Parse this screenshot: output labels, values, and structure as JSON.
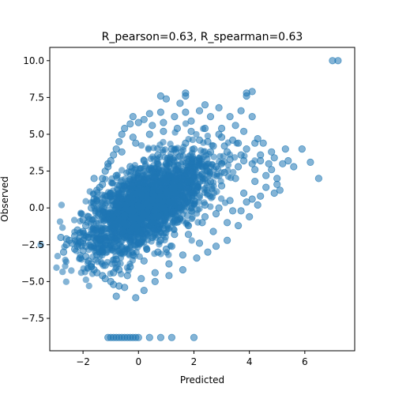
{
  "chart_data": {
    "type": "scatter",
    "title": "R_pearson=0.63, R_spearman=0.63",
    "xlabel": "Predicted",
    "ylabel": "Observed",
    "xlim": [
      -3.2,
      7.8
    ],
    "ylim": [
      -9.7,
      10.9
    ],
    "xticks": [
      {
        "value": -2,
        "label": "−2"
      },
      {
        "value": 0,
        "label": "0"
      },
      {
        "value": 2,
        "label": "2"
      },
      {
        "value": 4,
        "label": "4"
      },
      {
        "value": 6,
        "label": "6"
      }
    ],
    "yticks": [
      {
        "value": -7.5,
        "label": "−7.5"
      },
      {
        "value": -5.0,
        "label": "−5.0"
      },
      {
        "value": -2.5,
        "label": "−2.5"
      },
      {
        "value": 0.0,
        "label": "0.0"
      },
      {
        "value": 2.5,
        "label": "2.5"
      },
      {
        "value": 5.0,
        "label": "5.0"
      },
      {
        "value": 7.5,
        "label": "7.5"
      },
      {
        "value": 10.0,
        "label": "10.0"
      }
    ],
    "grid": false,
    "marker_color": "#1f77b4",
    "marker_alpha": 0.55,
    "series": [
      {
        "points": [
          [
            -2.8,
            -2.0
          ],
          [
            -2.7,
            -3.0
          ],
          [
            -2.6,
            -2.1
          ],
          [
            -2.5,
            -2.2
          ],
          [
            -2.4,
            -2.4
          ],
          [
            -2.3,
            -1.9
          ],
          [
            -2.2,
            -2.6
          ],
          [
            -2.1,
            -2.3
          ],
          [
            -2.0,
            -1.6
          ],
          [
            -2.0,
            -2.9
          ],
          [
            -1.9,
            -1.2
          ],
          [
            -1.9,
            -3.3
          ],
          [
            -1.8,
            -0.6
          ],
          [
            -1.8,
            -3.6
          ],
          [
            -1.7,
            0.0
          ],
          [
            -1.7,
            -4.0
          ],
          [
            -1.6,
            0.6
          ],
          [
            -1.6,
            -4.2
          ],
          [
            -1.5,
            1.2
          ],
          [
            -1.5,
            -4.4
          ],
          [
            -1.4,
            1.4
          ],
          [
            -1.3,
            2.0
          ],
          [
            -1.3,
            -4.6
          ],
          [
            -1.2,
            2.5
          ],
          [
            -1.2,
            -4.8
          ],
          [
            -1.1,
            2.8
          ],
          [
            -1.0,
            -5.0
          ],
          [
            -1.0,
            3.2
          ],
          [
            -0.9,
            -5.2
          ],
          [
            -0.9,
            3.6
          ],
          [
            -0.8,
            -6.0
          ],
          [
            -0.8,
            4.0
          ],
          [
            -0.7,
            4.5
          ],
          [
            -0.7,
            -5.3
          ],
          [
            -0.5,
            5.4
          ],
          [
            -0.5,
            -5.4
          ],
          [
            -0.3,
            5.7
          ],
          [
            -0.2,
            4.8
          ],
          [
            -0.1,
            -6.1
          ],
          [
            0.0,
            5.8
          ],
          [
            0.2,
            6.0
          ],
          [
            0.2,
            -5.6
          ],
          [
            0.4,
            6.4
          ],
          [
            0.5,
            5.6
          ],
          [
            0.6,
            -5.0
          ],
          [
            0.8,
            6.5
          ],
          [
            0.9,
            5.8
          ],
          [
            1.0,
            7.4
          ],
          [
            1.1,
            -4.6
          ],
          [
            1.3,
            6.2
          ],
          [
            1.5,
            7.1
          ],
          [
            1.6,
            -4.2
          ],
          [
            1.7,
            6.5
          ],
          [
            1.9,
            5.9
          ],
          [
            2.1,
            -3.4
          ],
          [
            2.2,
            6.6
          ],
          [
            2.4,
            7.0
          ],
          [
            2.5,
            -3.0
          ],
          [
            2.6,
            6.2
          ],
          [
            2.8,
            -2.6
          ],
          [
            2.9,
            6.8
          ],
          [
            3.0,
            5.4
          ],
          [
            3.2,
            -2.2
          ],
          [
            3.3,
            6.2
          ],
          [
            3.5,
            5.6
          ],
          [
            3.6,
            -1.2
          ],
          [
            3.7,
            6.6
          ],
          [
            3.8,
            5.2
          ],
          [
            3.9,
            7.6
          ],
          [
            4.0,
            -0.6
          ],
          [
            4.1,
            6.2
          ],
          [
            4.2,
            4.4
          ],
          [
            4.3,
            4.7
          ],
          [
            4.3,
            0.2
          ],
          [
            4.4,
            3.2
          ],
          [
            4.5,
            4.4
          ],
          [
            4.6,
            2.2
          ],
          [
            4.7,
            3.0
          ],
          [
            4.8,
            2.6
          ],
          [
            4.9,
            3.4
          ],
          [
            5.0,
            2.0
          ],
          [
            5.1,
            1.2
          ],
          [
            5.2,
            3.0
          ],
          [
            5.3,
            4.0
          ],
          [
            5.4,
            3.2
          ],
          [
            5.6,
            2.8
          ],
          [
            5.9,
            4.0
          ],
          [
            6.2,
            3.1
          ],
          [
            6.5,
            2.0
          ],
          [
            4.1,
            7.9
          ],
          [
            3.9,
            7.8
          ],
          [
            1.7,
            7.8
          ],
          [
            1.7,
            7.6
          ],
          [
            0.8,
            7.6
          ],
          [
            -0.2,
            6.2
          ],
          [
            -0.6,
            5.0
          ],
          [
            -2.0,
            -0.8
          ],
          [
            -1.5,
            -1.5
          ],
          [
            -1.0,
            -1.0
          ],
          [
            -0.5,
            -0.5
          ],
          [
            0.0,
            0.0
          ],
          [
            0.5,
            0.5
          ],
          [
            1.0,
            1.0
          ],
          [
            1.5,
            1.5
          ],
          [
            2.0,
            2.0
          ],
          [
            2.5,
            2.5
          ],
          [
            3.0,
            3.0
          ],
          [
            -1.0,
            -2.5
          ],
          [
            -0.5,
            -2.0
          ],
          [
            0.0,
            -1.5
          ],
          [
            0.5,
            -1.0
          ],
          [
            1.0,
            -0.5
          ],
          [
            1.5,
            0.0
          ],
          [
            2.0,
            0.5
          ],
          [
            2.5,
            1.0
          ],
          [
            3.0,
            1.5
          ],
          [
            3.5,
            2.0
          ],
          [
            -1.5,
            0.5
          ],
          [
            -1.0,
            1.0
          ],
          [
            -0.5,
            1.5
          ],
          [
            0.0,
            2.0
          ],
          [
            0.5,
            2.5
          ],
          [
            1.0,
            3.0
          ],
          [
            1.5,
            3.5
          ],
          [
            2.0,
            4.0
          ],
          [
            2.5,
            4.5
          ],
          [
            3.0,
            4.8
          ],
          [
            -2.2,
            -1.5
          ],
          [
            -1.8,
            -2.0
          ],
          [
            -1.3,
            -3.0
          ],
          [
            -0.8,
            -3.5
          ],
          [
            -0.3,
            -4.0
          ],
          [
            0.2,
            -3.6
          ],
          [
            0.7,
            -3.0
          ],
          [
            1.2,
            -2.6
          ],
          [
            1.8,
            -1.8
          ],
          [
            2.3,
            -1.0
          ],
          [
            2.8,
            -0.4
          ],
          [
            3.3,
            0.5
          ],
          [
            3.8,
            1.0
          ],
          [
            4.2,
            1.8
          ],
          [
            -1.6,
            2.0
          ],
          [
            -1.1,
            3.0
          ],
          [
            -0.6,
            3.8
          ],
          [
            -0.1,
            4.4
          ],
          [
            0.4,
            5.0
          ],
          [
            0.9,
            5.2
          ],
          [
            1.4,
            5.4
          ],
          [
            1.9,
            5.2
          ],
          [
            2.4,
            5.4
          ],
          [
            2.9,
            5.0
          ],
          [
            3.4,
            4.6
          ],
          [
            3.9,
            4.0
          ],
          [
            4.4,
            3.6
          ],
          [
            4.8,
            3.8
          ],
          [
            -0.9,
            -4.4
          ],
          [
            -0.4,
            -4.6
          ],
          [
            0.1,
            -4.8
          ],
          [
            0.6,
            -4.4
          ],
          [
            1.1,
            -3.8
          ],
          [
            1.6,
            -3.2
          ],
          [
            2.2,
            -2.4
          ],
          [
            2.7,
            -1.6
          ],
          [
            3.2,
            -1.0
          ],
          [
            3.7,
            -0.2
          ],
          [
            4.1,
            0.6
          ],
          [
            4.6,
            1.4
          ],
          [
            5.0,
            1.6
          ],
          [
            -2.3,
            -2.8
          ],
          [
            -1.9,
            -2.6
          ],
          [
            -1.4,
            -2.2
          ],
          [
            -1.2,
            -1.4
          ],
          [
            -0.7,
            -0.8
          ],
          [
            -0.2,
            -0.2
          ],
          [
            0.3,
            0.3
          ],
          [
            0.8,
            0.8
          ],
          [
            1.3,
            1.3
          ],
          [
            1.8,
            1.8
          ],
          [
            2.3,
            2.3
          ],
          [
            2.8,
            2.8
          ],
          [
            3.3,
            3.3
          ],
          [
            3.8,
            3.2
          ],
          [
            0.6,
            1.5
          ],
          [
            1.1,
            2.2
          ],
          [
            -0.3,
            1.0
          ],
          [
            0.2,
            1.2
          ],
          [
            0.9,
            2.0
          ],
          [
            1.6,
            2.6
          ],
          [
            2.1,
            3.2
          ],
          [
            2.6,
            3.8
          ],
          [
            3.1,
            4.2
          ],
          [
            3.6,
            4.4
          ],
          [
            -1.4,
            -0.4
          ],
          [
            -0.9,
            0.2
          ],
          [
            -0.4,
            0.6
          ],
          [
            0.1,
            0.9
          ],
          [
            0.6,
            -0.2
          ],
          [
            1.1,
            0.4
          ],
          [
            1.6,
            0.8
          ],
          [
            2.1,
            1.2
          ],
          [
            2.6,
            1.8
          ],
          [
            3.1,
            2.4
          ],
          [
            3.6,
            2.8
          ],
          [
            4.1,
            3.0
          ],
          [
            -2.6,
            -2.5
          ],
          [
            -2.1,
            -3.4
          ],
          [
            -1.7,
            -3.8
          ],
          [
            -1.2,
            -3.9
          ],
          [
            -0.7,
            -4.2
          ],
          [
            -0.2,
            -3.2
          ],
          [
            0.3,
            -2.8
          ],
          [
            0.8,
            -2.2
          ],
          [
            1.3,
            -1.8
          ],
          [
            1.8,
            -1.2
          ],
          [
            2.4,
            -0.6
          ],
          [
            2.9,
            0.0
          ],
          [
            3.4,
            -0.2
          ],
          [
            3.9,
            0.4
          ],
          [
            4.4,
            0.8
          ],
          [
            4.9,
            1.0
          ],
          [
            -1.3,
            1.6
          ],
          [
            -0.8,
            2.2
          ],
          [
            -0.3,
            2.8
          ],
          [
            0.2,
            3.2
          ],
          [
            0.7,
            3.6
          ],
          [
            1.2,
            4.0
          ],
          [
            1.7,
            4.4
          ],
          [
            2.2,
            4.6
          ],
          [
            2.7,
            4.2
          ],
          [
            3.2,
            3.8
          ],
          [
            3.7,
            3.6
          ],
          [
            4.2,
            2.6
          ],
          [
            -1.0,
            -2.0
          ],
          [
            -0.6,
            -1.6
          ],
          [
            0.4,
            -1.2
          ],
          [
            0.9,
            -1.4
          ],
          [
            1.4,
            -0.8
          ],
          [
            1.9,
            -0.2
          ],
          [
            2.4,
            0.2
          ],
          [
            0.0,
            -2.4
          ],
          [
            0.5,
            -2.0
          ],
          [
            1.0,
            -2.8
          ],
          [
            -0.5,
            -3.0
          ],
          [
            -1.5,
            -3.2
          ],
          [
            -2.0,
            -2.2
          ],
          [
            7.0,
            10.0
          ],
          [
            7.2,
            10.0
          ],
          [
            -1.1,
            -8.8
          ],
          [
            -1.0,
            -8.8
          ],
          [
            -0.9,
            -8.8
          ],
          [
            -0.8,
            -8.8
          ],
          [
            -0.7,
            -8.8
          ],
          [
            -0.6,
            -8.8
          ],
          [
            -0.5,
            -8.8
          ],
          [
            -0.4,
            -8.8
          ],
          [
            -0.3,
            -8.8
          ],
          [
            -0.2,
            -8.8
          ],
          [
            -0.1,
            -8.8
          ],
          [
            0.0,
            -8.8
          ],
          [
            0.4,
            -8.8
          ],
          [
            0.8,
            -8.8
          ],
          [
            1.2,
            -8.8
          ],
          [
            2.0,
            -8.8
          ]
        ]
      }
    ]
  }
}
